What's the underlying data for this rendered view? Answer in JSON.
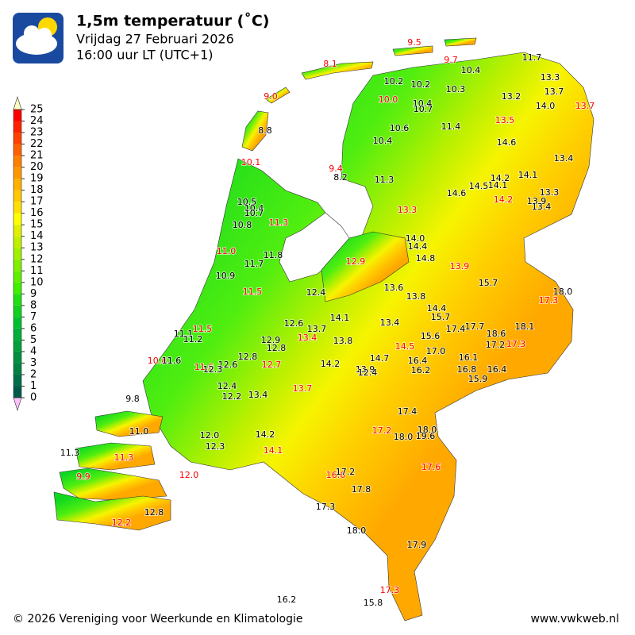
{
  "header": {
    "title": "1,5m temperatuur (˚C)",
    "subtitle": "Vrijdag 27 Februari 2026",
    "time": "16:00 uur LT (UTC+1)"
  },
  "colorbar": {
    "ticks": [
      0,
      1,
      2,
      3,
      4,
      5,
      6,
      7,
      8,
      9,
      10,
      11,
      12,
      13,
      14,
      15,
      16,
      17,
      18,
      19,
      20,
      21,
      22,
      23,
      24,
      25
    ],
    "colors": [
      "#005a4a",
      "#006e46",
      "#008042",
      "#009040",
      "#00a03c",
      "#00b038",
      "#00c030",
      "#10d020",
      "#20e010",
      "#40f000",
      "#60f000",
      "#80f000",
      "#a0f000",
      "#c0f000",
      "#e0f000",
      "#ffff00",
      "#ffe000",
      "#ffc800",
      "#ffb000",
      "#ff9800",
      "#ff8000",
      "#ff6000",
      "#ff4000",
      "#ff2000",
      "#ff0000"
    ],
    "over_color": "#ffffc0",
    "under_color": "#ffc0ff"
  },
  "stations": [
    {
      "label": "9.5",
      "color": "red"
    },
    {
      "label": "9.7",
      "color": "red"
    },
    {
      "label": "8.1",
      "color": "red"
    },
    {
      "label": "9.0",
      "color": "red"
    },
    {
      "label": "10.0",
      "color": "red"
    },
    {
      "label": "13.7",
      "color": "red"
    },
    {
      "label": "13.5",
      "color": "red"
    },
    {
      "label": "10.1",
      "color": "red"
    },
    {
      "label": "9.4",
      "color": "red"
    },
    {
      "label": "13.3",
      "color": "red"
    },
    {
      "label": "14.2",
      "color": "red"
    },
    {
      "label": "11.3",
      "color": "red"
    },
    {
      "label": "11.0",
      "color": "red"
    },
    {
      "label": "12.9",
      "color": "red"
    },
    {
      "label": "13.9",
      "color": "red"
    },
    {
      "label": "11.5",
      "color": "red"
    },
    {
      "label": "17.3",
      "color": "red"
    },
    {
      "label": "11.5",
      "color": "red"
    },
    {
      "label": "13.4",
      "color": "red"
    },
    {
      "label": "17.3",
      "color": "red"
    },
    {
      "label": "14.5",
      "color": "red"
    },
    {
      "label": "10.8",
      "color": "red"
    },
    {
      "label": "11.6",
      "color": "red"
    },
    {
      "label": "12.7",
      "color": "red"
    },
    {
      "label": "13.7",
      "color": "red"
    },
    {
      "label": "17.2",
      "color": "red"
    },
    {
      "label": "14.1",
      "color": "red"
    },
    {
      "label": "11.3",
      "color": "red"
    },
    {
      "label": "17.6",
      "color": "red"
    },
    {
      "label": "16.6",
      "color": "red"
    },
    {
      "label": "9.9",
      "color": "red"
    },
    {
      "label": "12.0",
      "color": "red"
    },
    {
      "label": "12.2",
      "color": "red"
    },
    {
      "label": "17.3",
      "color": "red"
    },
    {
      "label": "11.7",
      "color": "black"
    },
    {
      "label": "10.4",
      "color": "black"
    },
    {
      "label": "13.3",
      "color": "black"
    },
    {
      "label": "10.2",
      "color": "black"
    },
    {
      "label": "10.2",
      "color": "black"
    },
    {
      "label": "10.3",
      "color": "black"
    },
    {
      "label": "13.7",
      "color": "black"
    },
    {
      "label": "13.2",
      "color": "black"
    },
    {
      "label": "14.0",
      "color": "black"
    },
    {
      "label": "10.4",
      "color": "black"
    },
    {
      "label": "10.7",
      "color": "black"
    },
    {
      "label": "8.8",
      "color": "black"
    },
    {
      "label": "10.6",
      "color": "black"
    },
    {
      "label": "11.4",
      "color": "black"
    },
    {
      "label": "14.6",
      "color": "black"
    },
    {
      "label": "10.4",
      "color": "black"
    },
    {
      "label": "13.4",
      "color": "black"
    },
    {
      "label": "8.2",
      "color": "black"
    },
    {
      "label": "11.3",
      "color": "black"
    },
    {
      "label": "14.2",
      "color": "black"
    },
    {
      "label": "14.1",
      "color": "black"
    },
    {
      "label": "14.5",
      "color": "black"
    },
    {
      "label": "14.1",
      "color": "black"
    },
    {
      "label": "14.6",
      "color": "black"
    },
    {
      "label": "13.3",
      "color": "black"
    },
    {
      "label": "13.9",
      "color": "black"
    },
    {
      "label": "13.4",
      "color": "black"
    },
    {
      "label": "10.5",
      "color": "black"
    },
    {
      "label": "10.4",
      "color": "black"
    },
    {
      "label": "10.7",
      "color": "black"
    },
    {
      "label": "10.8",
      "color": "black"
    },
    {
      "label": "11.8",
      "color": "black"
    },
    {
      "label": "11.7",
      "color": "black"
    },
    {
      "label": "10.9",
      "color": "black"
    },
    {
      "label": "14.0",
      "color": "black"
    },
    {
      "label": "14.4",
      "color": "black"
    },
    {
      "label": "14.8",
      "color": "black"
    },
    {
      "label": "15.7",
      "color": "black"
    },
    {
      "label": "12.4",
      "color": "black"
    },
    {
      "label": "13.6",
      "color": "black"
    },
    {
      "label": "13.8",
      "color": "black"
    },
    {
      "label": "18.0",
      "color": "black"
    },
    {
      "label": "14.4",
      "color": "black"
    },
    {
      "label": "15.7",
      "color": "black"
    },
    {
      "label": "14.1",
      "color": "black"
    },
    {
      "label": "12.6",
      "color": "black"
    },
    {
      "label": "13.4",
      "color": "black"
    },
    {
      "label": "13.7",
      "color": "black"
    },
    {
      "label": "17.4",
      "color": "black"
    },
    {
      "label": "17.7",
      "color": "black"
    },
    {
      "label": "18.1",
      "color": "black"
    },
    {
      "label": "18.6",
      "color": "black"
    },
    {
      "label": "11.1",
      "color": "black"
    },
    {
      "label": "11.2",
      "color": "black"
    },
    {
      "label": "15.6",
      "color": "black"
    },
    {
      "label": "13.8",
      "color": "black"
    },
    {
      "label": "17.2",
      "color": "black"
    },
    {
      "label": "12.9",
      "color": "black"
    },
    {
      "label": "12.8",
      "color": "black"
    },
    {
      "label": "17.0",
      "color": "black"
    },
    {
      "label": "14.7",
      "color": "black"
    },
    {
      "label": "16.4",
      "color": "black"
    },
    {
      "label": "16.1",
      "color": "black"
    },
    {
      "label": "11.6",
      "color": "black"
    },
    {
      "label": "12.8",
      "color": "black"
    },
    {
      "label": "12.6",
      "color": "black"
    },
    {
      "label": "14.2",
      "color": "black"
    },
    {
      "label": "12.3",
      "color": "black"
    },
    {
      "label": "16.2",
      "color": "black"
    },
    {
      "label": "13.9",
      "color": "black"
    },
    {
      "label": "12.4",
      "color": "black"
    },
    {
      "label": "16.8",
      "color": "black"
    },
    {
      "label": "16.4",
      "color": "black"
    },
    {
      "label": "15.9",
      "color": "black"
    },
    {
      "label": "12.4",
      "color": "black"
    },
    {
      "label": "12.2",
      "color": "black"
    },
    {
      "label": "13.4",
      "color": "black"
    },
    {
      "label": "9.8",
      "color": "black"
    },
    {
      "label": "17.4",
      "color": "black"
    },
    {
      "label": "11.0",
      "color": "black"
    },
    {
      "label": "18.0",
      "color": "black"
    },
    {
      "label": "12.0",
      "color": "black"
    },
    {
      "label": "14.2",
      "color": "black"
    },
    {
      "label": "19.6",
      "color": "black"
    },
    {
      "label": "18.0",
      "color": "black"
    },
    {
      "label": "12.3",
      "color": "black"
    },
    {
      "label": "11.3",
      "color": "black"
    },
    {
      "label": "17.2",
      "color": "black"
    },
    {
      "label": "17.8",
      "color": "black"
    },
    {
      "label": "17.3",
      "color": "black"
    },
    {
      "label": "12.8",
      "color": "black"
    },
    {
      "label": "18.0",
      "color": "black"
    },
    {
      "label": "17.9",
      "color": "black"
    },
    {
      "label": "16.2",
      "color": "black"
    },
    {
      "label": "15.8",
      "color": "black"
    }
  ],
  "footer": {
    "copyright": "© 2026 Vereniging voor Weerkunde en Klimatologie",
    "website": "www.vwkweb.nl"
  }
}
